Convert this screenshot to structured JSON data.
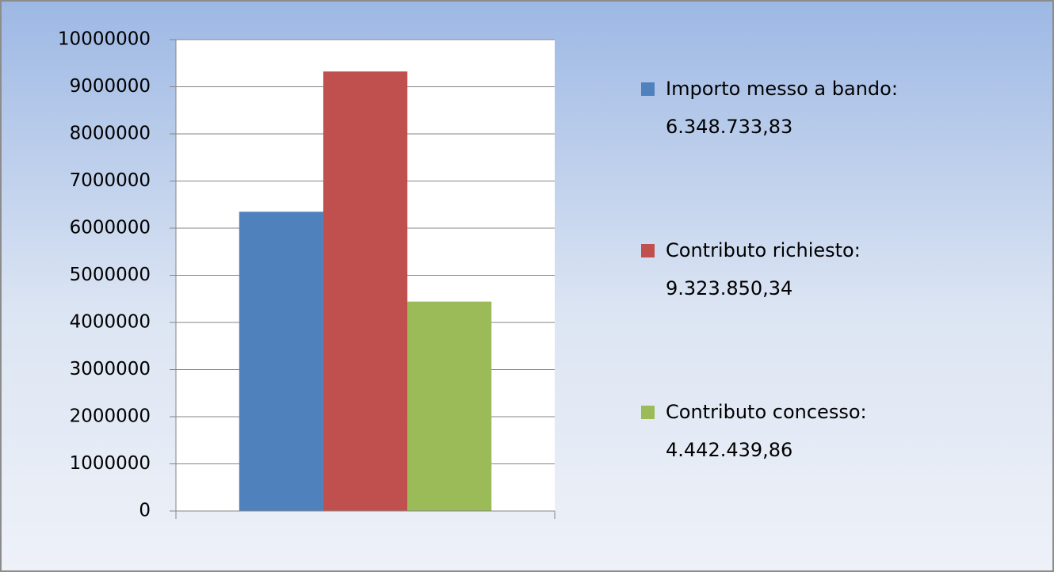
{
  "chart_data": {
    "type": "bar",
    "categories": [
      null
    ],
    "series": [
      {
        "name": "Importo messo a bando:",
        "color": "#4f81bd",
        "values": [
          6348733.83
        ],
        "value_labels": [
          "6.348.733,83"
        ]
      },
      {
        "name": "Contributo richiesto:",
        "color": "#c0504d",
        "values": [
          9323850.34
        ],
        "value_labels": [
          "9.323.850,34"
        ]
      },
      {
        "name": "Contributo concesso:",
        "color": "#9bbb59",
        "values": [
          4442439.86
        ],
        "value_labels": [
          "4.442.439,86"
        ]
      }
    ],
    "ylim": [
      0,
      10000000
    ],
    "yticks": [
      0,
      1000000,
      2000000,
      3000000,
      4000000,
      5000000,
      6000000,
      7000000,
      8000000,
      9000000,
      10000000
    ],
    "grid": true,
    "legend": "right"
  }
}
